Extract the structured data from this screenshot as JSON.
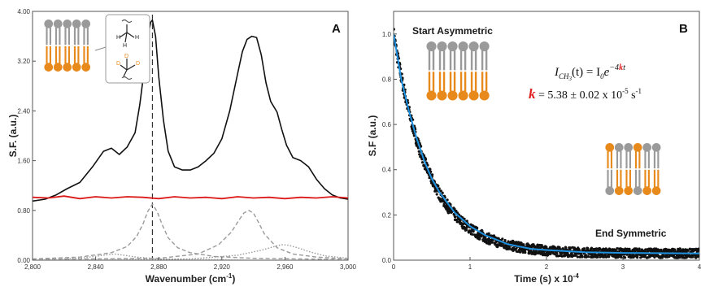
{
  "chart_data": [
    {
      "panel": "A",
      "type": "line",
      "xlabel": "Wavenumber (cm",
      "xlabel_sup": "-1",
      "xlabel_end": ")",
      "ylabel": "S.F. (a.u.)",
      "xlim": [
        2800,
        3000
      ],
      "ylim": [
        0,
        4
      ],
      "x_ticks": [
        "2,800",
        "2,840",
        "2,880",
        "2,920",
        "2,960",
        "3,000"
      ],
      "y_ticks": [
        "0.00",
        "0.80",
        "1.60",
        "2.40",
        "3.20",
        "4.00"
      ],
      "grid": false,
      "reference_line_x": 2876,
      "series": [
        {
          "color": "#111111",
          "style": "solid",
          "x": [
            2800,
            2808,
            2815,
            2822,
            2830,
            2838,
            2845,
            2850,
            2855,
            2860,
            2865,
            2868,
            2871,
            2873,
            2875,
            2876,
            2878,
            2880,
            2883,
            2886,
            2890,
            2895,
            2900,
            2905,
            2910,
            2915,
            2920,
            2925,
            2930,
            2933,
            2936,
            2939,
            2942,
            2945,
            2948,
            2951,
            2955,
            2958,
            2961,
            2965,
            2970,
            2975,
            2980,
            2985,
            2990,
            2995,
            3000
          ],
          "values": [
            0.95,
            0.98,
            1.05,
            1.15,
            1.25,
            1.5,
            1.75,
            1.8,
            1.7,
            1.82,
            2.05,
            2.5,
            3.1,
            3.6,
            3.83,
            3.86,
            3.6,
            2.95,
            2.25,
            1.75,
            1.5,
            1.45,
            1.45,
            1.5,
            1.6,
            1.72,
            1.95,
            2.4,
            3.0,
            3.35,
            3.55,
            3.6,
            3.58,
            3.3,
            2.85,
            2.55,
            2.38,
            2.1,
            1.85,
            1.65,
            1.6,
            1.5,
            1.3,
            1.15,
            1.05,
            1.0,
            0.98
          ]
        },
        {
          "color": "#dd1a1a",
          "style": "solid",
          "x": [
            2800,
            2810,
            2820,
            2830,
            2840,
            2850,
            2860,
            2870,
            2880,
            2890,
            2900,
            2910,
            2920,
            2930,
            2940,
            2950,
            2960,
            2970,
            2980,
            2990,
            3000
          ],
          "values": [
            1.01,
            1.0,
            1.03,
            0.99,
            1.02,
            1.0,
            1.02,
            1.01,
            0.99,
            1.02,
            1.0,
            1.01,
            0.99,
            1.02,
            1.0,
            1.01,
            0.99,
            1.01,
            1.0,
            1.02,
            1.0
          ]
        },
        {
          "color": "#9a9a9a",
          "style": "dashed",
          "x": [
            2800,
            2830,
            2850,
            2860,
            2866,
            2870,
            2873,
            2876,
            2879,
            2882,
            2886,
            2892,
            2900,
            2915,
            2940,
            2970,
            3000
          ],
          "values": [
            0.02,
            0.05,
            0.12,
            0.22,
            0.38,
            0.58,
            0.78,
            0.9,
            0.78,
            0.58,
            0.36,
            0.2,
            0.12,
            0.06,
            0.03,
            0.02,
            0.01
          ]
        },
        {
          "color": "#9a9a9a",
          "style": "dashed",
          "x": [
            2800,
            2880,
            2905,
            2918,
            2926,
            2931,
            2934,
            2937,
            2940,
            2943,
            2947,
            2955,
            2965,
            2980,
            3000
          ],
          "values": [
            0.01,
            0.03,
            0.1,
            0.25,
            0.45,
            0.65,
            0.76,
            0.8,
            0.76,
            0.62,
            0.42,
            0.2,
            0.1,
            0.05,
            0.02
          ]
        },
        {
          "color": "#9a9a9a",
          "style": "dotted",
          "x": [
            2800,
            2900,
            2930,
            2945,
            2952,
            2958,
            2962,
            2968,
            2975,
            2985,
            3000
          ],
          "values": [
            0.0,
            0.02,
            0.08,
            0.16,
            0.21,
            0.25,
            0.24,
            0.2,
            0.14,
            0.07,
            0.03
          ]
        },
        {
          "color": "#9a9a9a",
          "style": "dotted",
          "x": [
            2800,
            2830,
            2845,
            2852,
            2858,
            2866,
            2880,
            2900,
            2920,
            2940,
            3000
          ],
          "values": [
            0.0,
            0.03,
            0.08,
            0.1,
            0.08,
            0.05,
            0.02,
            0.01,
            0.01,
            0.0,
            0.0
          ]
        }
      ]
    },
    {
      "panel": "B",
      "type": "scatter",
      "xlabel": "Time (s) x 10",
      "xlabel_sup": "-4",
      "ylabel": "S.F (a.u.)",
      "xlim": [
        0,
        4
      ],
      "ylim": [
        0,
        1.1
      ],
      "x_ticks": [
        "0",
        "1",
        "2",
        "3",
        "4"
      ],
      "y_ticks": [
        "0.0",
        "0.2",
        "0.4",
        "0.6",
        "0.8",
        "1.0"
      ],
      "grid": false,
      "points": {
        "color": "#111111",
        "model": "0.97*exp(-2.17*t)+0.03",
        "t_range": [
          0,
          4
        ],
        "noise_amplitude": 0.02
      },
      "fit": {
        "color": "#1e90e0",
        "style": "solid",
        "x": [
          0,
          0.1,
          0.2,
          0.3,
          0.4,
          0.5,
          0.6,
          0.8,
          1.0,
          1.2,
          1.5,
          1.8,
          2.0,
          2.5,
          3.0,
          3.5,
          4.0
        ],
        "values": [
          1.0,
          0.8,
          0.66,
          0.54,
          0.44,
          0.36,
          0.3,
          0.21,
          0.15,
          0.11,
          0.07,
          0.05,
          0.045,
          0.035,
          0.032,
          0.031,
          0.03
        ]
      }
    }
  ],
  "panel_a": {
    "letter": "A"
  },
  "panel_b": {
    "letter": "B",
    "start_label": "Start Asymmetric",
    "end_label": "End Symmetric",
    "eq_lhs": "I",
    "eq_sub": "CH",
    "eq_sub3": "3",
    "eq_arg": "(t) = I",
    "eq_i0sub": "0",
    "eq_e": "e",
    "eq_exp_pre": "−4",
    "eq_exp_k": "k",
    "eq_exp_post": "t",
    "k_symbol": "k",
    "k_value_text": " = 5.38 ± 0.02 x 10",
    "k_exp1": "-5",
    "k_unit": " s",
    "k_exp2": "-1"
  },
  "colors": {
    "lipid_head_gray": "#9a9a9a",
    "lipid_tail_gray": "#9a9a9a",
    "lipid_orange": "#e8891c",
    "fit_blue": "#1e90e0",
    "eq_red": "#e02020"
  }
}
